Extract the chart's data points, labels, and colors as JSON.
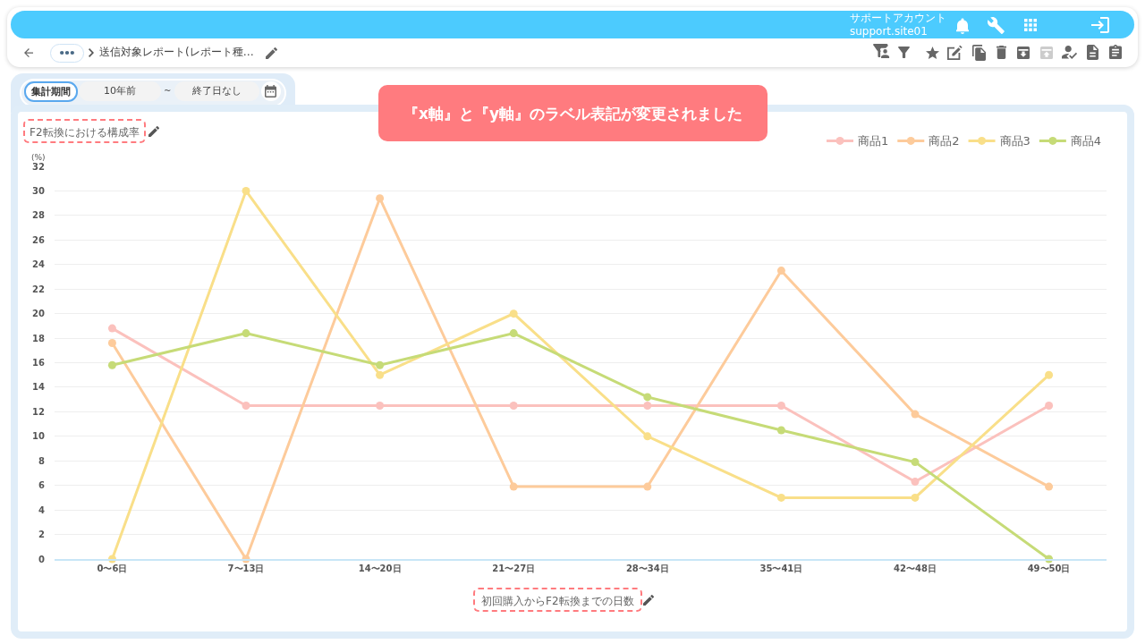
{
  "chart_data": {
    "type": "line",
    "title": "F2転換における構成率",
    "xlabel": "初回購入からF2転換までの日数",
    "ylabel": "(%)",
    "categories": [
      "0〜6日",
      "7〜13日",
      "14〜20日",
      "21〜27日",
      "28〜34日",
      "35〜41日",
      "42〜48日",
      "49〜50日"
    ],
    "series": [
      {
        "name": "商品1",
        "color": "#fbc1bd",
        "values": [
          18.8,
          12.5,
          12.5,
          12.5,
          12.5,
          12.5,
          6.3,
          12.5
        ]
      },
      {
        "name": "商品2",
        "color": "#fdcb9b",
        "values": [
          17.6,
          0,
          29.4,
          5.9,
          5.9,
          23.5,
          11.8,
          5.9
        ]
      },
      {
        "name": "商品3",
        "color": "#f9df89",
        "values": [
          0,
          30,
          15,
          20,
          10,
          5,
          5,
          15
        ]
      },
      {
        "name": "商品4",
        "color": "#c6db77",
        "values": [
          15.8,
          18.4,
          15.8,
          18.4,
          13.2,
          10.5,
          7.9,
          0
        ]
      }
    ],
    "ylim": [
      0,
      32
    ],
    "yticks": [
      0,
      2,
      4,
      6,
      8,
      10,
      12,
      14,
      16,
      18,
      20,
      22,
      24,
      26,
      28,
      30,
      32
    ],
    "grid": "y",
    "legend": "top right",
    "marker": "circle",
    "line_style": "solid",
    "annotations": [
      "『x軸』と『y軸』のラベル表記が変更されました",
      "サポートアカウント",
      "support.site01",
      "送信対象レポート(レポート種…",
      "集計期間",
      "10年前",
      "~",
      "終了日なし"
    ]
  }
}
